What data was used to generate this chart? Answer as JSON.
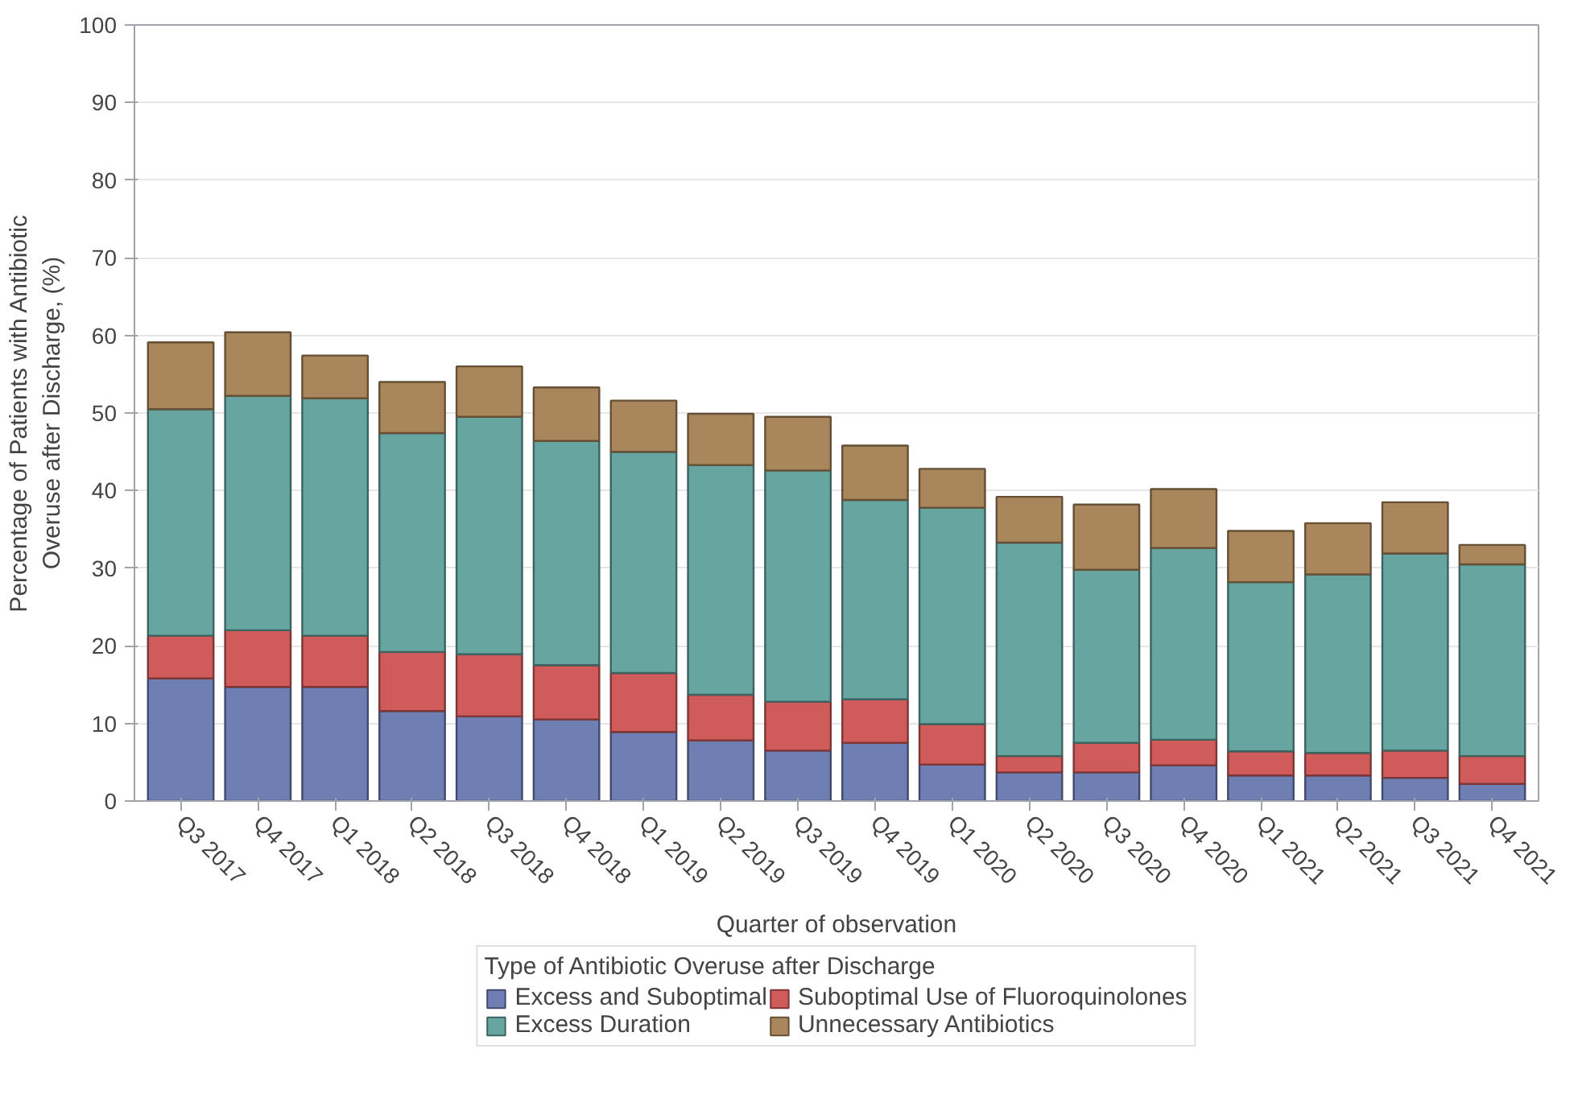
{
  "chart_data": {
    "type": "bar",
    "stacked": true,
    "xlabel": "Quarter of observation",
    "ylabel": "Percentage of Patients with Antibiotic Overuse after Discharge, (%)",
    "legend_title": "Type of Antibiotic Overuse after Discharge",
    "legend": "bottom",
    "grid": "y",
    "ylim": [
      0,
      100
    ],
    "yticks": [
      0,
      10,
      20,
      30,
      40,
      50,
      60,
      70,
      80,
      90,
      100
    ],
    "categories": [
      "Q3 2017",
      "Q4 2017",
      "Q1 2018",
      "Q2 2018",
      "Q3 2018",
      "Q4 2018",
      "Q1 2019",
      "Q2 2019",
      "Q3 2019",
      "Q4 2019",
      "Q1 2020",
      "Q2 2020",
      "Q3 2020",
      "Q4 2020",
      "Q1 2021",
      "Q2 2021",
      "Q3 2021",
      "Q4 2021"
    ],
    "series": [
      {
        "name": "Excess and Suboptimal",
        "color": "#6f7eb3",
        "values": [
          15.8,
          14.7,
          14.7,
          11.6,
          10.9,
          10.5,
          8.9,
          7.8,
          6.5,
          7.5,
          4.7,
          3.7,
          3.7,
          4.6,
          3.3,
          3.3,
          3.0,
          2.2
        ]
      },
      {
        "name": "Suboptimal Use of Fluoroquinolones",
        "color": "#d05b5b",
        "values": [
          5.5,
          7.3,
          6.6,
          7.6,
          8.0,
          7.0,
          7.6,
          5.9,
          6.3,
          5.6,
          5.2,
          2.1,
          3.8,
          3.3,
          3.1,
          2.9,
          3.5,
          3.6
        ]
      },
      {
        "name": "Excess Duration",
        "color": "#66a5a0",
        "values": [
          29.2,
          30.2,
          30.6,
          28.2,
          30.6,
          28.9,
          28.5,
          29.6,
          29.8,
          25.7,
          27.9,
          27.5,
          22.3,
          24.7,
          21.8,
          23.0,
          25.4,
          24.7
        ]
      },
      {
        "name": "Unnecessary Antibiotics",
        "color": "#a9865b",
        "values": [
          8.6,
          8.2,
          5.5,
          6.6,
          6.5,
          6.9,
          6.6,
          6.6,
          6.9,
          7.0,
          5.0,
          5.9,
          8.4,
          7.6,
          6.6,
          6.6,
          6.6,
          2.5
        ]
      }
    ]
  }
}
